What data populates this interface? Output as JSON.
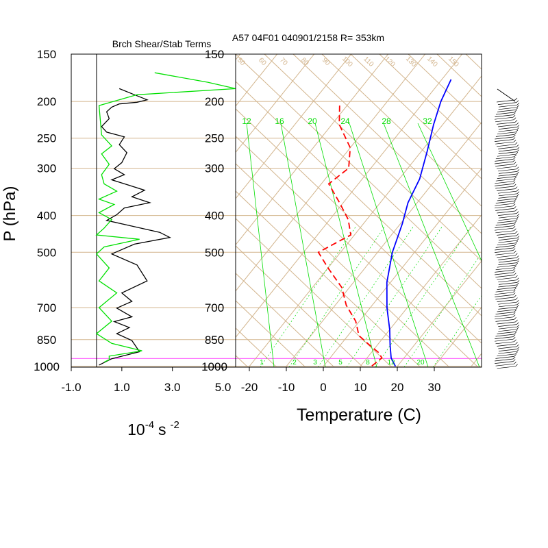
{
  "figure": {
    "title_left": "Brch Shear/Stab Terms",
    "title_right": "A57 04F01 040901/2158 R= 353km",
    "ylabel": "P (hPa)",
    "left_xlabel_base": "10",
    "left_xlabel_exp": "-4",
    "left_xlabel_unit": "s",
    "left_xlabel_unit_exp": "-2",
    "right_xlabel": "Temperature (C)"
  },
  "colors": {
    "frame": "#000000",
    "grid": "#d2b48c",
    "shear": "#00e000",
    "stability": "#000000",
    "dewpoint": "#ff0000",
    "temperature": "#0000ff",
    "mixing": "#00dd00",
    "highlight": "#ff66ff",
    "barb": "#000000"
  },
  "chart_data": [
    {
      "type": "line",
      "title": "Brch Shear/Stab Terms",
      "ylabel": "P (hPa)",
      "xlabel": "10^-4 s^-2",
      "y_scale": "log",
      "ylim": [
        1000,
        150
      ],
      "xlim": [
        -1.0,
        5.5
      ],
      "x_ticks": [
        "-1.0",
        "1.0",
        "3.0",
        "5.0"
      ],
      "x_tick_values": [
        -1.0,
        1.0,
        3.0,
        5.0
      ],
      "p_ticks": [
        150,
        200,
        250,
        300,
        400,
        500,
        700,
        850,
        1000
      ],
      "series": [
        {
          "color": "black",
          "points": [
            [
              0.9,
              185
            ],
            [
              1.5,
              192
            ],
            [
              2.0,
              198
            ],
            [
              1.6,
              201
            ],
            [
              0.9,
              203
            ],
            [
              0.6,
              207
            ],
            [
              0.4,
              213
            ],
            [
              0.5,
              222
            ],
            [
              0.2,
              233
            ],
            [
              0.4,
              241
            ],
            [
              1.1,
              248
            ],
            [
              0.9,
              260
            ],
            [
              1.2,
              273
            ],
            [
              1.0,
              290
            ],
            [
              0.7,
              301
            ],
            [
              1.1,
              312
            ],
            [
              0.6,
              322
            ],
            [
              1.3,
              333
            ],
            [
              1.9,
              343
            ],
            [
              1.4,
              357
            ],
            [
              2.1,
              370
            ],
            [
              1.1,
              382
            ],
            [
              0.8,
              398
            ],
            [
              0.4,
              412
            ],
            [
              1.3,
              425
            ],
            [
              2.5,
              443
            ],
            [
              2.9,
              457
            ],
            [
              1.5,
              476
            ],
            [
              0.6,
              505
            ],
            [
              1.6,
              540
            ],
            [
              2.0,
              595
            ],
            [
              1.0,
              640
            ],
            [
              1.4,
              674
            ],
            [
              0.8,
              702
            ],
            [
              1.4,
              740
            ],
            [
              0.7,
              762
            ],
            [
              1.3,
              790
            ],
            [
              0.8,
              820
            ],
            [
              1.4,
              855
            ],
            [
              1.7,
              915
            ],
            [
              0.6,
              955
            ],
            [
              0.1,
              992
            ]
          ]
        },
        {
          "color": "green",
          "points": [
            [
              2.3,
              168
            ],
            [
              4.4,
              178
            ],
            [
              5.5,
              185
            ],
            [
              1.6,
              192
            ],
            [
              0.1,
              205
            ],
            [
              0.2,
              245
            ],
            [
              0.6,
              262
            ],
            [
              0.2,
              275
            ],
            [
              0.5,
              293
            ],
            [
              0.2,
              312
            ],
            [
              0.3,
              330
            ],
            [
              0.8,
              345
            ],
            [
              0.1,
              362
            ],
            [
              0.7,
              374
            ],
            [
              0.1,
              393
            ],
            [
              0.6,
              410
            ],
            [
              0.3,
              432
            ],
            [
              0.0,
              450
            ],
            [
              1.7,
              462
            ],
            [
              0.3,
              484
            ],
            [
              0.0,
              505
            ],
            [
              0.5,
              550
            ],
            [
              0.1,
              595
            ],
            [
              0.8,
              640
            ],
            [
              0.1,
              700
            ],
            [
              0.6,
              760
            ],
            [
              0.0,
              820
            ],
            [
              0.6,
              870
            ],
            [
              1.8,
              910
            ],
            [
              0.5,
              940
            ],
            [
              0.5,
              960
            ],
            [
              0.3,
              975
            ]
          ]
        }
      ]
    },
    {
      "type": "line",
      "title": "A57 04F01 040901/2158 R= 353km",
      "xlabel": "Temperature (C)",
      "ylabel": "P (hPa)",
      "y_scale": "log",
      "ylim": [
        1000,
        150
      ],
      "x_ticks": [
        "-20",
        "-10",
        "0",
        "10",
        "20",
        "30"
      ],
      "x_tick_values": [
        -20,
        -10,
        0,
        10,
        20,
        30
      ],
      "p_ticks": [
        150,
        200,
        250,
        300,
        400,
        500,
        700,
        850,
        1000
      ],
      "mixing_ratio_labels_top": [
        "12",
        "16",
        "20",
        "24",
        "28",
        "32"
      ],
      "mixing_ratio_labels_bottom": [
        "1",
        "2",
        "3",
        "5",
        "8",
        "12",
        "20"
      ],
      "dry_adiabat_labels": [
        "50",
        "60",
        "70",
        "80",
        "90",
        "100",
        "110",
        "120",
        "130",
        "140",
        "150"
      ],
      "highlight_band_hPa": [
        1000,
        940
      ],
      "series": [
        {
          "name": "temperature",
          "color": "blue",
          "points": [
            [
              -27.5,
              175
            ],
            [
              -25.5,
              200
            ],
            [
              -22.5,
              230
            ],
            [
              -18.5,
              270
            ],
            [
              -14.5,
              320
            ],
            [
              -12.5,
              370
            ],
            [
              -9.5,
              420
            ],
            [
              -6,
              500
            ],
            [
              -1,
              600
            ],
            [
              4.5,
              700
            ],
            [
              10,
              800
            ],
            [
              13.5,
              880
            ],
            [
              16.5,
              950
            ],
            [
              19.5,
              1000
            ]
          ]
        },
        {
          "name": "dewpoint",
          "color": "red",
          "points": [
            [
              -52,
              205
            ],
            [
              -48,
              230
            ],
            [
              -40,
              265
            ],
            [
              -36,
              300
            ],
            [
              -38,
              330
            ],
            [
              -31,
              370
            ],
            [
              -25,
              410
            ],
            [
              -21,
              450
            ],
            [
              -26,
              500
            ],
            [
              -20,
              550
            ],
            [
              -12,
              620
            ],
            [
              -7,
              690
            ],
            [
              -1,
              760
            ],
            [
              3,
              830
            ],
            [
              8,
              880
            ],
            [
              12,
              920
            ],
            [
              14,
              950
            ],
            [
              13,
              1000
            ]
          ]
        }
      ]
    }
  ],
  "wind_barbs_note": ""
}
